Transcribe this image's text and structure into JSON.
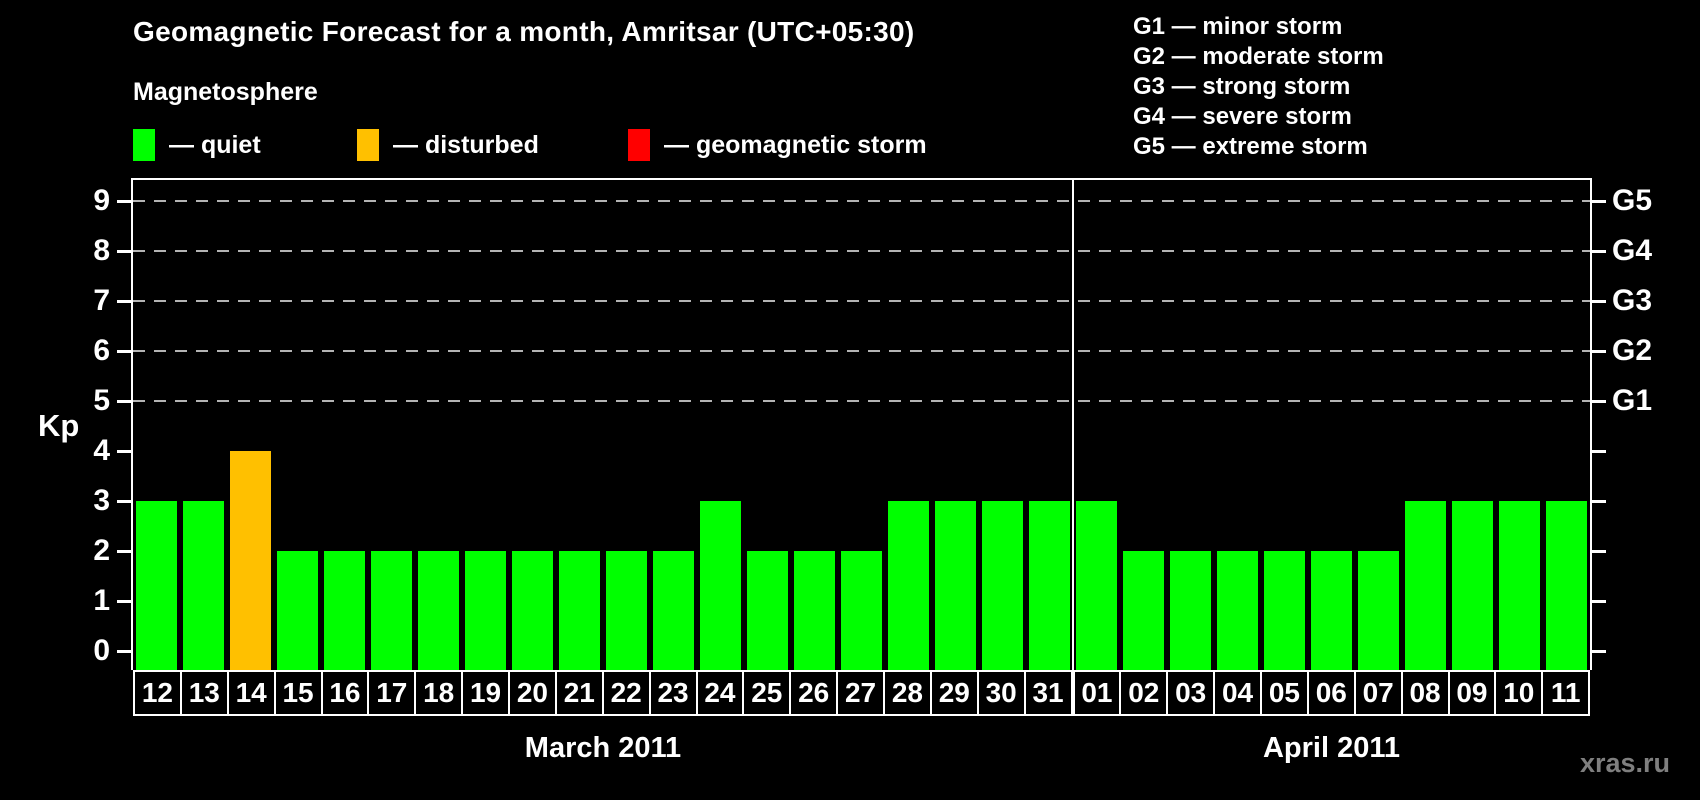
{
  "title": "Geomagnetic Forecast for a month, Amritsar (UTC+05:30)",
  "magnetosphere": {
    "heading": "Magnetosphere",
    "items": [
      {
        "name": "quiet",
        "label": "— quiet",
        "color": "#00FF00"
      },
      {
        "name": "disturbed",
        "label": "— disturbed",
        "color": "#FFC000"
      },
      {
        "name": "storm",
        "label": "— geomagnetic storm",
        "color": "#FF0000"
      }
    ]
  },
  "g_legend": [
    "G1 — minor storm",
    "G2 — moderate storm",
    "G3 — strong storm",
    "G4 — severe storm",
    "G5 — extreme storm"
  ],
  "watermark": "xras.ru",
  "chart_data": {
    "type": "bar",
    "title": "Geomagnetic Forecast for a month, Amritsar (UTC+05:30)",
    "ylabel": "Kp",
    "ylim": [
      0,
      9
    ],
    "y_ticks": [
      0,
      1,
      2,
      3,
      4,
      5,
      6,
      7,
      8,
      9
    ],
    "gridlines_at_kp": [
      5,
      6,
      7,
      8,
      9
    ],
    "grid_style": "dashed gray horizontal lines at G-storm levels",
    "right_axis_labels": [
      {
        "label": "G1",
        "kp": 5
      },
      {
        "label": "G2",
        "kp": 6
      },
      {
        "label": "G3",
        "kp": 7
      },
      {
        "label": "G4",
        "kp": 8
      },
      {
        "label": "G5",
        "kp": 9
      }
    ],
    "months": [
      {
        "label": "March 2011",
        "days": 20
      },
      {
        "label": "April 2011",
        "days": 11
      }
    ],
    "categories": [
      "12",
      "13",
      "14",
      "15",
      "16",
      "17",
      "18",
      "19",
      "20",
      "21",
      "22",
      "23",
      "24",
      "25",
      "26",
      "27",
      "28",
      "29",
      "30",
      "31",
      "01",
      "02",
      "03",
      "04",
      "05",
      "06",
      "07",
      "08",
      "09",
      "10",
      "11"
    ],
    "values": [
      3,
      3,
      4,
      2,
      2,
      2,
      2,
      2,
      2,
      2,
      2,
      2,
      3,
      2,
      2,
      2,
      3,
      3,
      3,
      3,
      3,
      2,
      2,
      2,
      2,
      2,
      2,
      3,
      3,
      3,
      3
    ],
    "states": [
      "quiet",
      "quiet",
      "disturbed",
      "quiet",
      "quiet",
      "quiet",
      "quiet",
      "quiet",
      "quiet",
      "quiet",
      "quiet",
      "quiet",
      "quiet",
      "quiet",
      "quiet",
      "quiet",
      "quiet",
      "quiet",
      "quiet",
      "quiet",
      "quiet",
      "quiet",
      "quiet",
      "quiet",
      "quiet",
      "quiet",
      "quiet",
      "quiet",
      "quiet",
      "quiet",
      "quiet"
    ],
    "colors": {
      "quiet": "#00FF00",
      "disturbed": "#FFC000",
      "storm": "#FF0000"
    },
    "legend_position": "top"
  }
}
